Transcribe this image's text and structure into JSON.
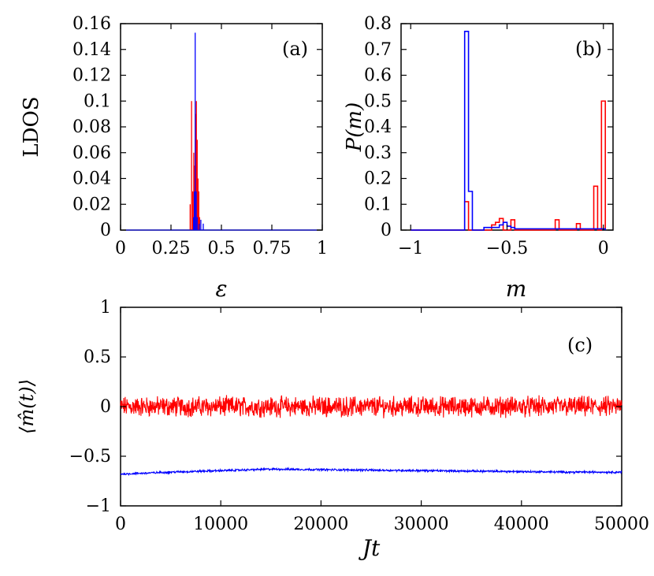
{
  "figure": {
    "panel_labels": [
      "(a)",
      "(b)",
      "(c)"
    ]
  },
  "colors": {
    "series_red": "#ff0000",
    "series_blue": "#0000ff"
  },
  "chart_data": [
    {
      "id": "a",
      "type": "line",
      "panel_label": "(a)",
      "xlabel": "ε",
      "ylabel": "LDOS",
      "xlim": [
        0,
        1
      ],
      "ylim": [
        0,
        0.16
      ],
      "xticks": [
        0,
        0.25,
        0.5,
        0.75,
        1
      ],
      "xtick_labels": [
        "0",
        "0.25",
        "0.5",
        "0.75",
        "1"
      ],
      "yticks": [
        0,
        0.02,
        0.04,
        0.06,
        0.08,
        0.1,
        0.12,
        0.14,
        0.16
      ],
      "ytick_labels": [
        "0",
        "0.02",
        "0.04",
        "0.06",
        "0.08",
        "0.1",
        "0.12",
        "0.14",
        "0.16"
      ],
      "grid": false,
      "series": [
        {
          "color": "#ff0000",
          "style": "spikes",
          "x": [
            0.345,
            0.352,
            0.358,
            0.363,
            0.368,
            0.372,
            0.376,
            0.38,
            0.384,
            0.388,
            0.392
          ],
          "y": [
            0.02,
            0.1,
            0.03,
            0.06,
            0.05,
            0.09,
            0.1,
            0.07,
            0.04,
            0.03,
            0.01
          ]
        },
        {
          "color": "#0000ff",
          "style": "spikes",
          "x": [
            0.362,
            0.366,
            0.37,
            0.375,
            0.38,
            0.39,
            0.398,
            0.41
          ],
          "y": [
            0.01,
            0.03,
            0.153,
            0.03,
            0.01,
            0.005,
            0.008,
            0.005
          ]
        }
      ]
    },
    {
      "id": "b",
      "type": "line",
      "panel_label": "(b)",
      "xlabel": "m",
      "ylabel": "P(m)",
      "xlim": [
        -1.05,
        0.05
      ],
      "ylim": [
        0,
        0.8
      ],
      "xticks": [
        -1,
        -0.5,
        0
      ],
      "xtick_labels": [
        "−1",
        "−0.5",
        "0"
      ],
      "yticks": [
        0,
        0.1,
        0.2,
        0.3,
        0.4,
        0.5,
        0.6,
        0.7,
        0.8
      ],
      "ytick_labels": [
        "0",
        "0.1",
        "0.2",
        "0.3",
        "0.4",
        "0.5",
        "0.6",
        "0.7",
        "0.8"
      ],
      "grid": false,
      "series": [
        {
          "color": "#ff0000",
          "style": "steps",
          "x": [
            -1.0,
            -0.72,
            -0.7,
            -0.68,
            -0.58,
            -0.56,
            -0.54,
            -0.52,
            -0.5,
            -0.48,
            -0.46,
            -0.44,
            -0.25,
            -0.23,
            -0.14,
            -0.12,
            -0.05,
            -0.03,
            -0.01,
            0.01
          ],
          "y": [
            0,
            0.11,
            0.0,
            0.0,
            0.02,
            0.03,
            0.045,
            0.0,
            0.0,
            0.04,
            0.0,
            0.0,
            0.04,
            0.0,
            0.025,
            0.0,
            0.17,
            0.0,
            0.5,
            0
          ]
        },
        {
          "color": "#0000ff",
          "style": "steps",
          "x": [
            -1.0,
            -0.72,
            -0.7,
            -0.68,
            -0.62,
            -0.56,
            -0.54,
            -0.52,
            -0.5,
            -0.48,
            -0.46,
            -0.2,
            -0.1,
            -0.02,
            0.01
          ],
          "y": [
            0,
            0.77,
            0.15,
            0.0,
            0.01,
            0.01,
            0.02,
            0.03,
            0.015,
            0.01,
            0.005,
            0.005,
            0.005,
            0.005,
            0
          ]
        }
      ]
    },
    {
      "id": "c",
      "type": "line",
      "panel_label": "(c)",
      "xlabel": "Jt",
      "ylabel": "⟨m̂(t)⟩",
      "xlim": [
        0,
        50000
      ],
      "ylim": [
        -1,
        1
      ],
      "xticks": [
        0,
        10000,
        20000,
        30000,
        40000,
        50000
      ],
      "xtick_labels": [
        "0",
        "10000",
        "20000",
        "30000",
        "40000",
        "50000"
      ],
      "yticks": [
        -1,
        -0.5,
        0,
        0.5,
        1
      ],
      "ytick_labels": [
        "−1",
        "−0.5",
        "0",
        "0.5",
        "1"
      ],
      "grid": false,
      "series": [
        {
          "color": "#ff0000",
          "style": "noisy",
          "mean": 0.0,
          "amplitude": 0.08
        },
        {
          "color": "#0000ff",
          "style": "noisy",
          "mean_points_x": [
            0,
            5000,
            15000,
            25000,
            35000,
            45000,
            50000
          ],
          "mean_points_y": [
            -0.68,
            -0.66,
            -0.63,
            -0.64,
            -0.65,
            -0.66,
            -0.66
          ],
          "amplitude": 0.008
        }
      ]
    }
  ]
}
